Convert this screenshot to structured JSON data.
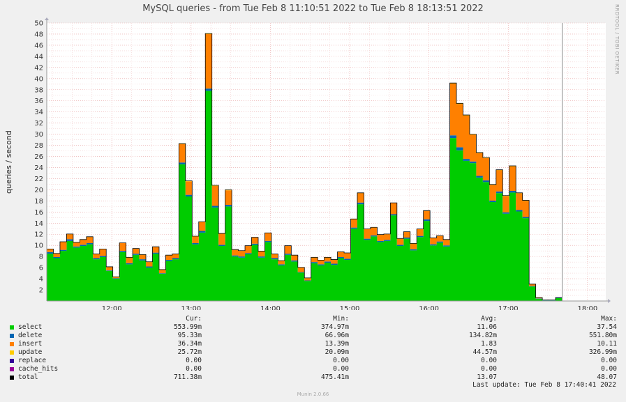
{
  "title": "MySQL queries - from Tue Feb  8 11:10:51 2022 to Tue Feb  8 18:13:51 2022",
  "watermark": "RRDTOOL / TOBI OETIKER",
  "ylabel": "queries / second",
  "legend_headers": {
    "cur": "Cur:",
    "min": "Min:",
    "avg": "Avg:",
    "max": "Max:"
  },
  "legend": [
    {
      "name": "select",
      "color": "#00cc00",
      "cur": "553.99m",
      "min": "374.97m",
      "avg": "11.06",
      "max": "37.54"
    },
    {
      "name": "delete",
      "color": "#0066b3",
      "cur": "95.33m",
      "min": "66.96m",
      "avg": "134.82m",
      "max": "551.80m"
    },
    {
      "name": "insert",
      "color": "#ff8000",
      "cur": "36.34m",
      "min": "13.39m",
      "avg": "1.83",
      "max": "10.11"
    },
    {
      "name": "update",
      "color": "#ffcc00",
      "cur": "25.72m",
      "min": "20.09m",
      "avg": "44.57m",
      "max": "326.99m"
    },
    {
      "name": "replace",
      "color": "#330099",
      "cur": "0.00",
      "min": "0.00",
      "avg": "0.00",
      "max": "0.00"
    },
    {
      "name": "cache_hits",
      "color": "#990099",
      "cur": "0.00",
      "min": "0.00",
      "avg": "0.00",
      "max": "0.00"
    },
    {
      "name": "total",
      "color": "#000000",
      "cur": "711.38m",
      "min": "475.41m",
      "avg": "13.07",
      "max": "48.07"
    }
  ],
  "last_update": "Last update: Tue Feb  8 17:40:41 2022",
  "footer": "Munin 2.0.66",
  "chart_data": {
    "type": "area",
    "stacked": true,
    "x_start_hours": 11.18,
    "x_step_minutes": 5,
    "x_ticks": [
      {
        "hour": 12,
        "label": "12:00"
      },
      {
        "hour": 13,
        "label": "13:00"
      },
      {
        "hour": 14,
        "label": "14:00"
      },
      {
        "hour": 15,
        "label": "15:00"
      },
      {
        "hour": 16,
        "label": "16:00"
      },
      {
        "hour": 17,
        "label": "17:00"
      },
      {
        "hour": 18,
        "label": "18:00"
      }
    ],
    "xlim_hours": [
      11.18,
      18.23
    ],
    "now_hour": 17.68,
    "ylim": [
      0,
      50
    ],
    "y_ticks": [
      2,
      4,
      6,
      8,
      10,
      12,
      14,
      16,
      18,
      20,
      22,
      24,
      26,
      28,
      30,
      32,
      34,
      36,
      38,
      40,
      42,
      44,
      46,
      48,
      50
    ],
    "grid": true,
    "series": [
      {
        "name": "select",
        "color": "#00cc00",
        "values": [
          8.5,
          7.7,
          9.0,
          10.8,
          9.6,
          9.9,
          10.2,
          7.5,
          7.9,
          5.4,
          4.0,
          8.8,
          6.6,
          8.3,
          7.3,
          6.0,
          8.5,
          4.9,
          7.2,
          7.5,
          24.6,
          18.8,
          10.2,
          12.3,
          37.8,
          16.8,
          9.9,
          17.0,
          8.0,
          7.8,
          8.4,
          10.1,
          7.8,
          10.6,
          7.5,
          6.4,
          8.3,
          7.1,
          5.1,
          3.6,
          6.8,
          6.4,
          6.9,
          6.5,
          7.7,
          7.4,
          13.0,
          17.4,
          11.0,
          11.6,
          10.6,
          10.8,
          15.4,
          9.9,
          11.2,
          9.1,
          11.5,
          14.4,
          10.0,
          10.5,
          9.8,
          29.3,
          27.1,
          25.2,
          24.8,
          22.2,
          21.4,
          17.8,
          19.4,
          15.7,
          19.5,
          16.1,
          14.9,
          2.6,
          0.4,
          0.1,
          0.1,
          0.5
        ]
      },
      {
        "name": "delete",
        "color": "#0066b3",
        "values": [
          0.3,
          0.2,
          0.2,
          0.3,
          0.2,
          0.2,
          0.2,
          0.2,
          0.2,
          0.1,
          0.1,
          0.2,
          0.2,
          0.2,
          0.2,
          0.2,
          0.2,
          0.1,
          0.2,
          0.2,
          0.3,
          0.3,
          0.2,
          0.3,
          0.4,
          0.3,
          0.2,
          0.3,
          0.2,
          0.2,
          0.2,
          0.2,
          0.2,
          0.2,
          0.2,
          0.2,
          0.2,
          0.2,
          0.1,
          0.1,
          0.2,
          0.2,
          0.2,
          0.2,
          0.2,
          0.2,
          0.2,
          0.3,
          0.2,
          0.2,
          0.2,
          0.2,
          0.2,
          0.2,
          0.2,
          0.2,
          0.2,
          0.3,
          0.2,
          0.2,
          0.2,
          0.5,
          0.55,
          0.35,
          0.3,
          0.3,
          0.3,
          0.25,
          0.3,
          0.25,
          0.3,
          0.25,
          0.2,
          0.1,
          0.07,
          0.07,
          0.07,
          0.1
        ]
      },
      {
        "name": "insert",
        "color": "#ff8000",
        "values": [
          0.5,
          0.6,
          1.4,
          0.9,
          0.7,
          0.9,
          1.1,
          0.7,
          1.2,
          0.6,
          0.2,
          1.4,
          1.0,
          0.9,
          0.8,
          0.8,
          1.0,
          0.6,
          0.8,
          0.7,
          3.3,
          2.4,
          1.2,
          1.6,
          9.8,
          3.6,
          2.0,
          2.6,
          1.0,
          1.0,
          1.3,
          1.1,
          0.9,
          1.4,
          0.7,
          0.6,
          1.4,
          0.9,
          0.8,
          0.4,
          0.8,
          0.7,
          0.7,
          0.7,
          0.9,
          1.0,
          1.5,
          1.7,
          1.7,
          1.4,
          1.1,
          1.0,
          2.0,
          1.1,
          1.0,
          1.0,
          1.2,
          1.5,
          1.1,
          1.0,
          1.0,
          9.3,
          7.8,
          7.8,
          4.8,
          4.1,
          4.0,
          2.8,
          3.8,
          2.9,
          4.4,
          3.0,
          2.9,
          0.3,
          0.1,
          0.0,
          0.0,
          0.0
        ]
      },
      {
        "name": "update",
        "color": "#ffcc00",
        "values": [
          0.05,
          0.05,
          0.05,
          0.05,
          0.05,
          0.05,
          0.05,
          0.05,
          0.05,
          0.05,
          0.05,
          0.05,
          0.05,
          0.05,
          0.05,
          0.05,
          0.05,
          0.05,
          0.05,
          0.05,
          0.1,
          0.1,
          0.05,
          0.05,
          0.1,
          0.1,
          0.05,
          0.1,
          0.05,
          0.05,
          0.05,
          0.05,
          0.05,
          0.05,
          0.05,
          0.05,
          0.05,
          0.05,
          0.05,
          0.05,
          0.05,
          0.05,
          0.05,
          0.05,
          0.05,
          0.05,
          0.05,
          0.05,
          0.05,
          0.05,
          0.05,
          0.05,
          0.05,
          0.05,
          0.05,
          0.05,
          0.05,
          0.05,
          0.05,
          0.05,
          0.05,
          0.1,
          0.1,
          0.1,
          0.1,
          0.1,
          0.1,
          0.1,
          0.1,
          0.1,
          0.1,
          0.1,
          0.1,
          0.03,
          0.03,
          0.03,
          0.03,
          0.03
        ]
      },
      {
        "name": "replace",
        "color": "#330099",
        "values": []
      },
      {
        "name": "cache_hits",
        "color": "#990099",
        "values": []
      }
    ]
  }
}
